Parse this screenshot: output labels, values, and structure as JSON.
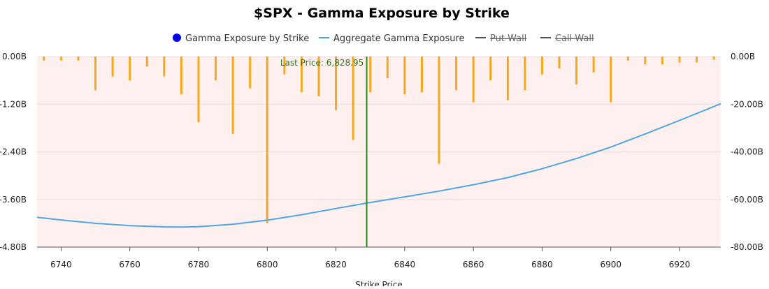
{
  "chart_data": {
    "type": "bar",
    "title": "$SPX - Gamma Exposure by Strike",
    "xlabel": "Strike Price",
    "ylabel": "",
    "xlim": [
      6733,
      6932
    ],
    "ylim_left": [
      -4.8,
      0
    ],
    "ylim_right": [
      -80,
      0
    ],
    "left_ticks": [
      "0.00B",
      "-1.20B",
      "-2.40B",
      "-3.60B",
      "-4.80B"
    ],
    "right_ticks": [
      "0.00B",
      "-20.00B",
      "-40.00B",
      "-60.00B",
      "-80.00B"
    ],
    "x_ticks": [
      "6740",
      "6760",
      "6780",
      "6800",
      "6820",
      "6840",
      "6860",
      "6880",
      "6900",
      "6920"
    ],
    "legend": [
      {
        "label": "Gamma Exposure by Strike",
        "marker": "dot",
        "color": "#0000ee",
        "hidden": false
      },
      {
        "label": "Aggregate Gamma Exposure",
        "marker": "line",
        "color": "#4da6e8",
        "hidden": false
      },
      {
        "label": "Put Wall",
        "marker": "line",
        "color": "#555555",
        "hidden": true
      },
      {
        "label": "Call Wall",
        "marker": "line",
        "color": "#555555",
        "hidden": true
      }
    ],
    "legend_position": "top-center",
    "background_color": "#fff0f0",
    "bar_color": "#f5a81c",
    "last_price": {
      "value": 6828.95,
      "label": "Last Price: 6,828.95",
      "color": "#2a8a1a"
    },
    "series": [
      {
        "name": "Gamma Exposure by Strike",
        "axis": "left",
        "x": [
          6735,
          6740,
          6745,
          6750,
          6755,
          6760,
          6765,
          6770,
          6775,
          6780,
          6785,
          6790,
          6795,
          6800,
          6805,
          6810,
          6815,
          6820,
          6825,
          6830,
          6835,
          6840,
          6845,
          6850,
          6855,
          6860,
          6865,
          6870,
          6875,
          6880,
          6885,
          6890,
          6895,
          6900,
          6905,
          6910,
          6915,
          6920,
          6925,
          6930
        ],
        "values": [
          -0.1,
          -0.1,
          -0.1,
          -0.85,
          -0.5,
          -0.6,
          -0.25,
          -0.5,
          -0.95,
          -1.65,
          -0.6,
          -1.95,
          -0.8,
          -4.2,
          -0.45,
          -0.9,
          -1.0,
          -1.35,
          -2.1,
          -0.9,
          -0.55,
          -0.95,
          -0.9,
          -2.7,
          -0.85,
          -1.15,
          -0.6,
          -1.1,
          -0.85,
          -0.45,
          -0.3,
          -0.7,
          -0.4,
          -1.15,
          -0.1,
          -0.2,
          -0.2,
          -0.15,
          -0.15,
          -0.08
        ]
      },
      {
        "name": "Aggregate Gamma Exposure",
        "axis": "right",
        "type": "line",
        "x": [
          6733,
          6740,
          6750,
          6760,
          6770,
          6775,
          6780,
          6790,
          6800,
          6810,
          6820,
          6829,
          6840,
          6850,
          6860,
          6870,
          6880,
          6890,
          6900,
          6910,
          6920,
          6932
        ],
        "values": [
          -67.5,
          -68.6,
          -70.0,
          -71.0,
          -71.5,
          -71.6,
          -71.4,
          -70.4,
          -68.7,
          -66.4,
          -63.8,
          -61.5,
          -58.9,
          -56.5,
          -53.8,
          -50.8,
          -47.1,
          -42.8,
          -38.0,
          -32.5,
          -26.8,
          -19.8
        ]
      }
    ]
  }
}
